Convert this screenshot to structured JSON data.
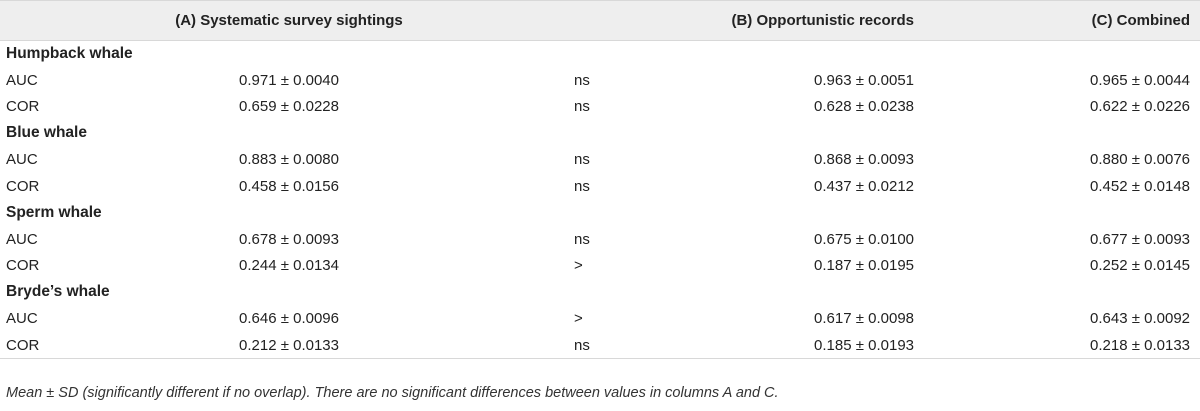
{
  "header": {
    "col_a": "(A) Systematic survey sightings",
    "col_b": "(B) Opportunistic records",
    "col_c": "(C) Combined"
  },
  "groups": [
    {
      "name": "Humpback whale",
      "rows": [
        {
          "metric": "AUC",
          "a": "0.971 ± 0.0040",
          "sig": "ns",
          "b": "0.963 ± 0.0051",
          "c": "0.965 ± 0.0044"
        },
        {
          "metric": "COR",
          "a": "0.659 ± 0.0228",
          "sig": "ns",
          "b": "0.628 ± 0.0238",
          "c": "0.622 ± 0.0226"
        }
      ]
    },
    {
      "name": "Blue whale",
      "rows": [
        {
          "metric": "AUC",
          "a": "0.883 ± 0.0080",
          "sig": "ns",
          "b": "0.868 ± 0.0093",
          "c": "0.880 ± 0.0076"
        },
        {
          "metric": "COR",
          "a": "0.458 ± 0.0156",
          "sig": "ns",
          "b": "0.437 ± 0.0212",
          "c": "0.452 ± 0.0148"
        }
      ]
    },
    {
      "name": "Sperm whale",
      "rows": [
        {
          "metric": "AUC",
          "a": "0.678 ± 0.0093",
          "sig": "ns",
          "b": "0.675 ± 0.0100",
          "c": "0.677 ± 0.0093"
        },
        {
          "metric": "COR",
          "a": "0.244 ± 0.0134",
          "sig": ">",
          "b": "0.187 ± 0.0195",
          "c": "0.252 ± 0.0145"
        }
      ]
    },
    {
      "name": "Bryde’s whale",
      "rows": [
        {
          "metric": "AUC",
          "a": "0.646 ± 0.0096",
          "sig": ">",
          "b": "0.617 ± 0.0098",
          "c": "0.643 ± 0.0092"
        },
        {
          "metric": "COR",
          "a": "0.212 ± 0.0133",
          "sig": "ns",
          "b": "0.185 ± 0.0193",
          "c": "0.218 ± 0.0133"
        }
      ]
    }
  ],
  "footnote": "Mean ± SD (significantly different if no overlap). There are no significant differences between values in columns A and C."
}
